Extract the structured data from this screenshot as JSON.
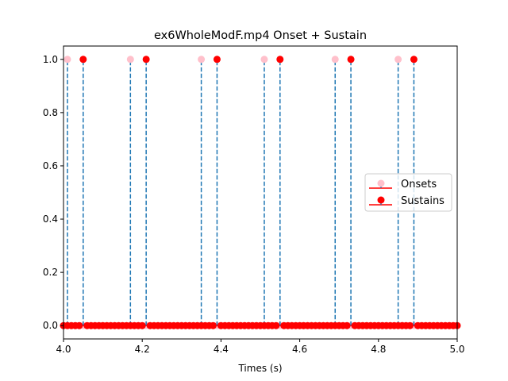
{
  "chart_data": {
    "type": "scatter",
    "title": "ex6WholeModF.mp4 Onset + Sustain",
    "xlabel": "Times (s)",
    "ylabel": "",
    "xlim": [
      4.0,
      5.0
    ],
    "ylim": [
      -0.05,
      1.05
    ],
    "x_ticks": [
      4.0,
      4.2,
      4.4,
      4.6,
      4.8,
      5.0
    ],
    "x_tick_labels": [
      "4.0",
      "4.2",
      "4.4",
      "4.6",
      "4.8",
      "5.0"
    ],
    "y_ticks": [
      0.0,
      0.2,
      0.4,
      0.6,
      0.8,
      1.0
    ],
    "y_tick_labels": [
      "0.0",
      "0.2",
      "0.4",
      "0.6",
      "0.8",
      "1.0"
    ],
    "grid": false,
    "legend_position": "center-right",
    "series": [
      {
        "name": "Onsets",
        "style": "stem",
        "marker_color": "#ffc0cb",
        "stem_color": "#1f77b4",
        "baseline_color": "#ff0000",
        "x_start": 4.0,
        "x_end": 5.0,
        "x_step": 0.01,
        "one_at": [
          4.01,
          4.17,
          4.35,
          4.51,
          4.69,
          4.85
        ]
      },
      {
        "name": "Sustains",
        "style": "stem",
        "marker_color": "#ff0000",
        "stem_color": "#1f77b4",
        "baseline_color": "#ff0000",
        "x_start": 4.0,
        "x_end": 5.0,
        "x_step": 0.01,
        "one_at": [
          4.05,
          4.21,
          4.39,
          4.55,
          4.73,
          4.89
        ]
      }
    ],
    "colors": {
      "onset": "#ffc0cb",
      "sustain": "#ff0000",
      "stem": "#1f77b4",
      "axes": "#000000"
    }
  }
}
